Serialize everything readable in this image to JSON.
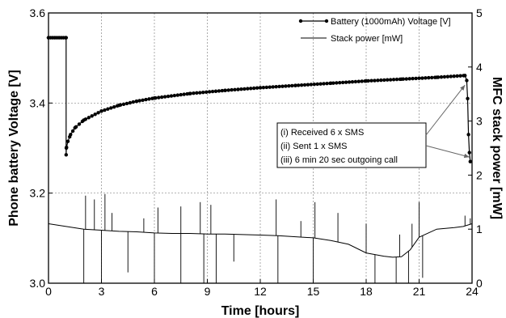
{
  "chart_data": {
    "type": "line",
    "xlabel": "Time [hours]",
    "ylabel_left": "Phone battery Voltage [V]",
    "ylabel_right": "MFC stack power [mW]",
    "xlim": [
      0,
      24
    ],
    "ylim_left": [
      3.0,
      3.6
    ],
    "ylim_right": [
      0,
      5
    ],
    "x_ticks": [
      "0",
      "3",
      "6",
      "9",
      "12",
      "15",
      "18",
      "21",
      "24"
    ],
    "y_left_ticks": [
      "3.0",
      "3.2",
      "3.4",
      "3.6"
    ],
    "y_right_ticks": [
      "0",
      "1",
      "2",
      "3",
      "4",
      "5"
    ],
    "grid": true,
    "legend_position": "top-right",
    "series": [
      {
        "name": "Battery (1000mAh) Voltage [V]",
        "axis": "left",
        "marker": "circle",
        "color": "#000000",
        "x": [
          0,
          1.0,
          1.0,
          1.01,
          1.1,
          1.25,
          1.5,
          2,
          3,
          4,
          5,
          6,
          8,
          10,
          12,
          14,
          16,
          18,
          20,
          22,
          23.6,
          23.7,
          23.75,
          23.8,
          23.85,
          23.9
        ],
        "y": [
          3.545,
          3.545,
          3.285,
          3.3,
          3.315,
          3.33,
          3.345,
          3.362,
          3.382,
          3.395,
          3.404,
          3.411,
          3.421,
          3.428,
          3.434,
          3.439,
          3.444,
          3.449,
          3.453,
          3.457,
          3.461,
          3.45,
          3.41,
          3.33,
          3.29,
          3.27
        ]
      },
      {
        "name": "Stack power [mW]",
        "axis": "right",
        "marker": "none",
        "color": "#000000",
        "x": [
          0,
          1,
          2,
          3,
          4,
          5,
          6,
          7,
          8,
          9,
          10,
          11,
          12,
          13,
          14,
          15,
          16,
          17,
          18,
          19,
          19.5,
          20,
          20.5,
          21,
          22,
          23,
          23.5,
          24
        ],
        "y": [
          1.1,
          1.05,
          1.0,
          0.98,
          0.96,
          0.95,
          0.93,
          0.92,
          0.92,
          0.91,
          0.91,
          0.9,
          0.89,
          0.88,
          0.86,
          0.84,
          0.79,
          0.72,
          0.56,
          0.5,
          0.48,
          0.49,
          0.62,
          0.85,
          1.0,
          1.03,
          1.05,
          1.1
        ]
      }
    ],
    "power_spikes": [
      {
        "x": 2.1,
        "y": 1.62
      },
      {
        "x": 2.6,
        "y": 1.55
      },
      {
        "x": 3.2,
        "y": 1.65
      },
      {
        "x": 3.6,
        "y": 1.3
      },
      {
        "x": 5.4,
        "y": 1.2
      },
      {
        "x": 6.2,
        "y": 1.4
      },
      {
        "x": 7.5,
        "y": 1.42
      },
      {
        "x": 8.6,
        "y": 1.5
      },
      {
        "x": 9.2,
        "y": 1.45
      },
      {
        "x": 12.9,
        "y": 1.55
      },
      {
        "x": 14.3,
        "y": 1.15
      },
      {
        "x": 15.1,
        "y": 1.5
      },
      {
        "x": 16.4,
        "y": 1.3
      },
      {
        "x": 18.0,
        "y": 1.1
      },
      {
        "x": 19.9,
        "y": 0.9
      },
      {
        "x": 20.6,
        "y": 1.1
      },
      {
        "x": 21.0,
        "y": 1.5
      },
      {
        "x": 23.6,
        "y": 1.25
      },
      {
        "x": 23.9,
        "y": 1.2
      }
    ],
    "power_drops": [
      {
        "x": 2.0,
        "y": 0.0
      },
      {
        "x": 3.0,
        "y": 0.0
      },
      {
        "x": 4.5,
        "y": 0.2
      },
      {
        "x": 6.0,
        "y": 0.0
      },
      {
        "x": 7.5,
        "y": 0.0
      },
      {
        "x": 8.8,
        "y": 0.0
      },
      {
        "x": 9.5,
        "y": 0.0
      },
      {
        "x": 10.5,
        "y": 0.4
      },
      {
        "x": 13.0,
        "y": 0.0
      },
      {
        "x": 15.0,
        "y": 0.0
      },
      {
        "x": 18.5,
        "y": 0.0
      },
      {
        "x": 19.7,
        "y": 0.0
      },
      {
        "x": 20.4,
        "y": 0.0
      },
      {
        "x": 21.2,
        "y": 0.1
      }
    ],
    "annotation": {
      "lines": [
        "(i) Received 6 x SMS",
        "(ii)  Sent 1 x SMS",
        "(iii) 6 min 20 sec outgoing call"
      ],
      "arrow_targets": [
        {
          "x": 23.6,
          "y_axis": "left",
          "y": 3.44
        },
        {
          "x": 23.85,
          "y_axis": "left",
          "y": 3.28
        }
      ]
    }
  }
}
